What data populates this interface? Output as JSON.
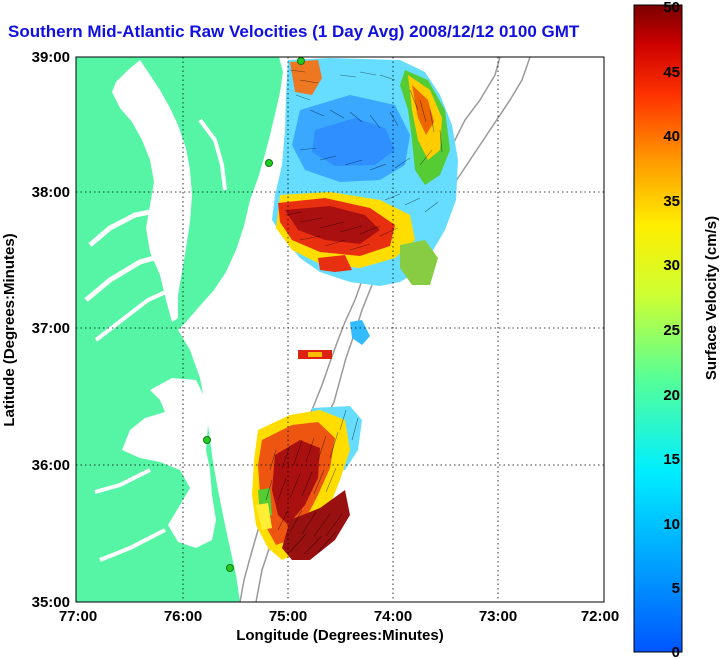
{
  "title": "Southern Mid-Atlantic Raw Velocities (1 Day Avg) 2008/12/12 0100 GMT",
  "map": {
    "x_label": "Longitude (Degrees:Minutes)",
    "y_label": "Latitude (Degrees:Minutes)",
    "x_ticks": [
      "77:00",
      "76:00",
      "75:00",
      "74:00",
      "73:00",
      "72:00"
    ],
    "y_ticks": [
      "39:00",
      "38:00",
      "37:00",
      "36:00",
      "35:00"
    ],
    "x_range_deg_west": [
      77,
      72
    ],
    "y_range_deg_north": [
      35,
      39
    ],
    "grid": "dotted",
    "land_color": "#55f5a5",
    "bathymetry_contour_color": "#9a9a9a",
    "arrow_color": "#000000",
    "station_marker_color": "#22cc22"
  },
  "colorbar": {
    "label": "Surface Velocity (cm/s)",
    "ticks": [
      "50",
      "45",
      "40",
      "35",
      "30",
      "25",
      "20",
      "15",
      "10",
      "5",
      "0"
    ],
    "range": [
      0,
      50
    ],
    "colormap": "jet"
  }
}
